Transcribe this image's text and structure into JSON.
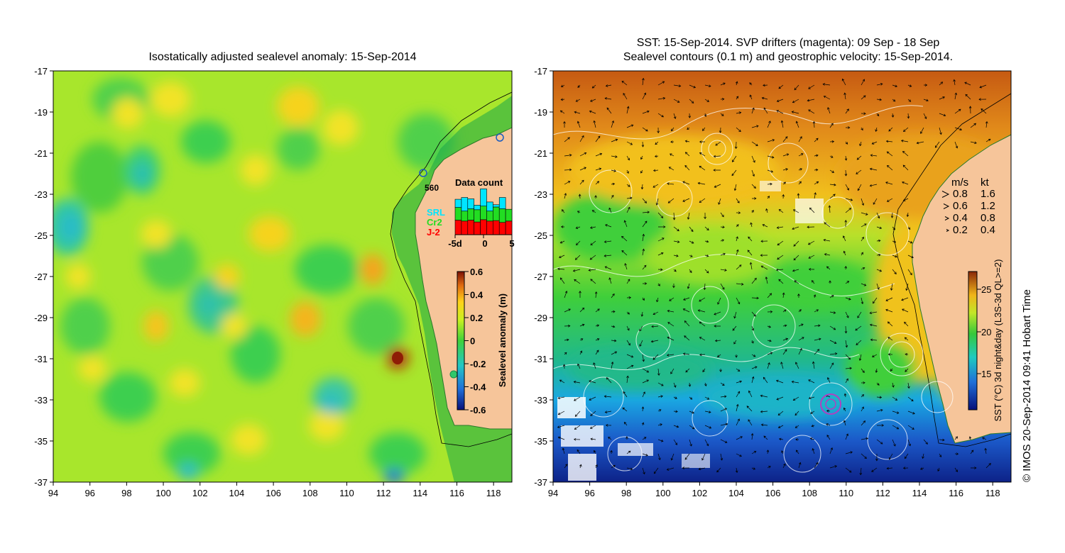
{
  "left_panel": {
    "title": "Isostatically adjusted sealevel anomaly: 15-Sep-2014",
    "x_ticks": [
      "94",
      "96",
      "98",
      "100",
      "102",
      "104",
      "106",
      "108",
      "110",
      "112",
      "114",
      "116",
      "118"
    ],
    "y_ticks": [
      "-17",
      "-19",
      "-21",
      "-23",
      "-25",
      "-27",
      "-29",
      "-31",
      "-33",
      "-35",
      "-37"
    ],
    "data_count": {
      "title": "Data count",
      "max_label": "560",
      "x_ticks": [
        "-5d",
        "0",
        "5"
      ],
      "legend": [
        {
          "label": "SRL",
          "color": "#00e5ff"
        },
        {
          "label": "Cr2",
          "color": "#22dd22"
        },
        {
          "label": "J-2",
          "color": "#ff0000"
        }
      ],
      "bars_J2": [
        0.32,
        0.3,
        0.32,
        0.28,
        0.33,
        0.3,
        0.31,
        0.27,
        0.3
      ],
      "bars_Cr2": [
        0.28,
        0.22,
        0.25,
        0.27,
        0.3,
        0.22,
        0.3,
        0.3,
        0.26
      ],
      "bars_SRL": [
        0.18,
        0.3,
        0.22,
        0.1,
        0.38,
        0.2,
        0.05,
        0.25,
        0.0
      ]
    },
    "colorbar": {
      "label": "Sealevel anomaly (m)",
      "ticks": [
        "0.6",
        "0.4",
        "0.2",
        "0",
        "-0.2",
        "-0.4",
        "-0.6"
      ]
    }
  },
  "right_panel": {
    "title_line1": "SST: 15-Sep-2014. SVP drifters (magenta): 09 Sep - 18 Sep",
    "title_line2": "Sealevel contours (0.1 m) and geostrophic velocity: 15-Sep-2014.",
    "x_ticks": [
      "94",
      "96",
      "98",
      "100",
      "102",
      "104",
      "106",
      "108",
      "110",
      "112",
      "114",
      "116",
      "118"
    ],
    "y_ticks": [
      "-17",
      "-19",
      "-21",
      "-23",
      "-25",
      "-27",
      "-29",
      "-31",
      "-33",
      "-35",
      "-37"
    ],
    "velocity_legend": {
      "headers": [
        "m/s",
        "kt"
      ],
      "rows": [
        [
          "0.8",
          "1.6"
        ],
        [
          "0.6",
          "1.2"
        ],
        [
          "0.4",
          "0.8"
        ],
        [
          "0.2",
          "0.4"
        ]
      ]
    },
    "colorbar": {
      "label": "SST (°C) 3d night&day (L3S-3d QL>=2)",
      "ticks": [
        "25",
        "20",
        "15"
      ]
    }
  },
  "credit": "© IMOS 20-Sep-2014 09:41 Hobart Time"
}
